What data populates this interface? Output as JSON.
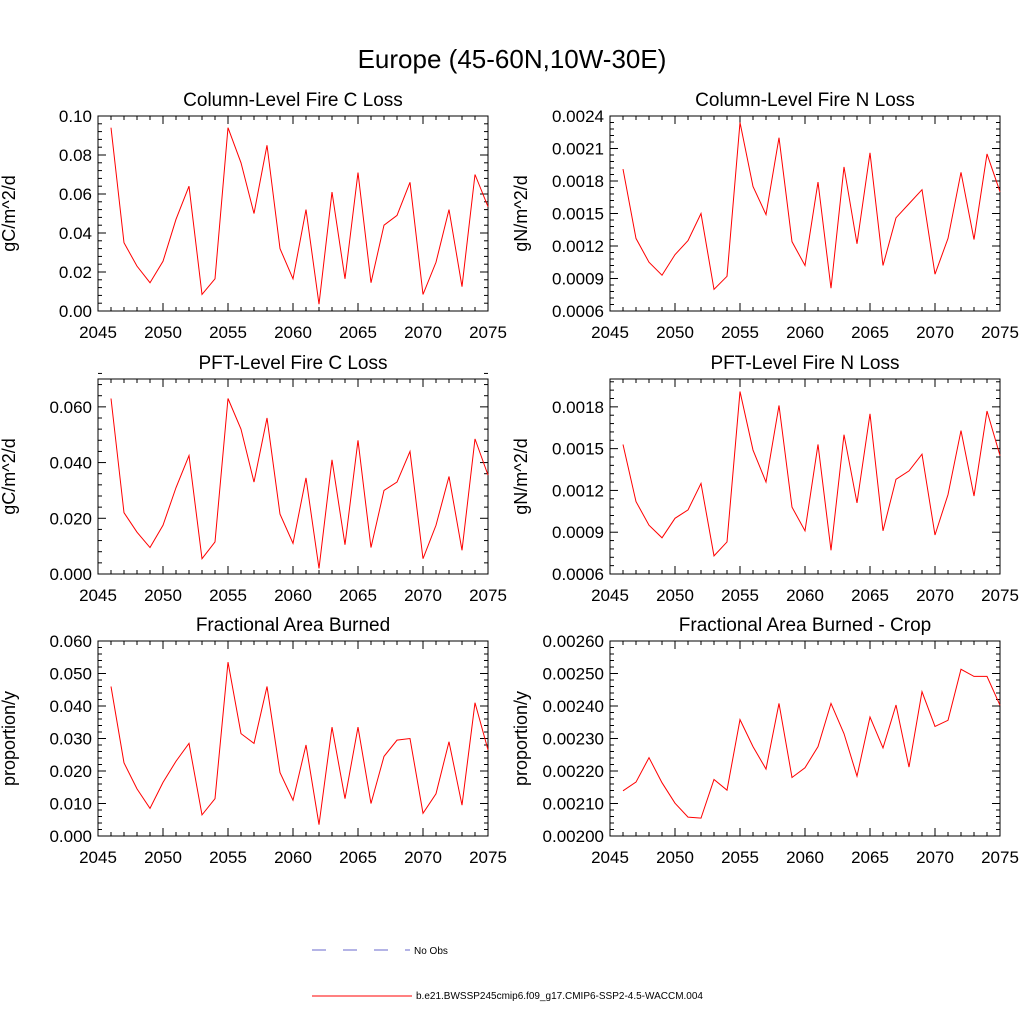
{
  "title": "Europe (45-60N,10W-30E)",
  "colors": {
    "series": "#ff0000",
    "obs": "#6a6acd",
    "axis": "#000000"
  },
  "legend": {
    "obs_label": "No Obs",
    "model_label": "b.e21.BWSSP245cmip6.f09_g17.CMIP6-SSP2-4.5-WACCM.004"
  },
  "chart_data": [
    {
      "type": "line",
      "title": "Column-Level Fire C Loss",
      "ylabel": "gC/m^2/d",
      "xlim": [
        2045,
        2075
      ],
      "ylim": [
        0.0,
        0.1
      ],
      "xticks": [
        "2045",
        "2050",
        "2055",
        "2060",
        "2065",
        "2070",
        "2075"
      ],
      "yticks": [
        "0.00",
        "0.02",
        "0.04",
        "0.06",
        "0.08",
        "0.10"
      ],
      "x": [
        2046,
        2047,
        2048,
        2049,
        2050,
        2051,
        2052,
        2053,
        2054,
        2055,
        2056,
        2057,
        2058,
        2059,
        2060,
        2061,
        2062,
        2063,
        2064,
        2065,
        2066,
        2067,
        2068,
        2069,
        2070,
        2071,
        2072,
        2073,
        2074,
        2075
      ],
      "values": [
        0.094,
        0.035,
        0.023,
        0.0145,
        0.0255,
        0.047,
        0.064,
        0.0085,
        0.0165,
        0.094,
        0.076,
        0.05,
        0.085,
        0.032,
        0.0165,
        0.052,
        0.0035,
        0.061,
        0.0165,
        0.071,
        0.0145,
        0.044,
        0.049,
        0.066,
        0.0085,
        0.025,
        0.052,
        0.0125,
        0.07,
        0.0535
      ]
    },
    {
      "type": "line",
      "title": "Column-Level Fire N Loss",
      "ylabel": "gN/m^2/d",
      "xlim": [
        2045,
        2075
      ],
      "ylim": [
        0.0006,
        0.0024
      ],
      "xticks": [
        "2045",
        "2050",
        "2055",
        "2060",
        "2065",
        "2070",
        "2075"
      ],
      "yticks": [
        "0.0006",
        "0.0009",
        "0.0012",
        "0.0015",
        "0.0018",
        "0.0021",
        "0.0024"
      ],
      "x": [
        2046,
        2047,
        2048,
        2049,
        2050,
        2051,
        2052,
        2053,
        2054,
        2055,
        2056,
        2057,
        2058,
        2059,
        2060,
        2061,
        2062,
        2063,
        2064,
        2065,
        2066,
        2067,
        2068,
        2069,
        2070,
        2071,
        2072,
        2073,
        2074,
        2075
      ],
      "values": [
        0.00191,
        0.00127,
        0.00105,
        0.00093,
        0.00112,
        0.00125,
        0.0015,
        0.0008,
        0.00092,
        0.00234,
        0.00175,
        0.00149,
        0.0022,
        0.00124,
        0.00102,
        0.00179,
        0.00081,
        0.00193,
        0.00122,
        0.00206,
        0.00102,
        0.00146,
        0.00159,
        0.00172,
        0.00094,
        0.00127,
        0.00188,
        0.00126,
        0.00205,
        0.0017
      ]
    },
    {
      "type": "line",
      "title": "PFT-Level Fire C Loss",
      "ylabel": "gC/m^2/d",
      "xlim": [
        2045,
        2075
      ],
      "ylim": [
        0.0,
        0.07
      ],
      "xticks": [
        "2045",
        "2050",
        "2055",
        "2060",
        "2065",
        "2070",
        "2075"
      ],
      "yticks": [
        "0.000",
        "0.020",
        "0.040",
        "0.060"
      ],
      "ytick_values": [
        0.0,
        0.02,
        0.04,
        0.06
      ],
      "x": [
        2046,
        2047,
        2048,
        2049,
        2050,
        2051,
        2052,
        2053,
        2054,
        2055,
        2056,
        2057,
        2058,
        2059,
        2060,
        2061,
        2062,
        2063,
        2064,
        2065,
        2066,
        2067,
        2068,
        2069,
        2070,
        2071,
        2072,
        2073,
        2074,
        2075
      ],
      "values": [
        0.063,
        0.022,
        0.015,
        0.0095,
        0.0175,
        0.031,
        0.0425,
        0.0055,
        0.0115,
        0.063,
        0.052,
        0.033,
        0.056,
        0.0215,
        0.011,
        0.0345,
        0.002,
        0.041,
        0.0105,
        0.048,
        0.0095,
        0.03,
        0.033,
        0.044,
        0.0055,
        0.0175,
        0.035,
        0.0085,
        0.0485,
        0.0355
      ]
    },
    {
      "type": "line",
      "title": "PFT-Level Fire N Loss",
      "ylabel": "gN/m^2/d",
      "xlim": [
        2045,
        2075
      ],
      "ylim": [
        0.0006,
        0.002
      ],
      "xticks": [
        "2045",
        "2050",
        "2055",
        "2060",
        "2065",
        "2070",
        "2075"
      ],
      "yticks": [
        "0.0006",
        "0.0009",
        "0.0012",
        "0.0015",
        "0.0018"
      ],
      "ytick_values": [
        0.0006,
        0.0009,
        0.0012,
        0.0015,
        0.0018
      ],
      "x": [
        2046,
        2047,
        2048,
        2049,
        2050,
        2051,
        2052,
        2053,
        2054,
        2055,
        2056,
        2057,
        2058,
        2059,
        2060,
        2061,
        2062,
        2063,
        2064,
        2065,
        2066,
        2067,
        2068,
        2069,
        2070,
        2071,
        2072,
        2073,
        2074,
        2075
      ],
      "values": [
        0.00153,
        0.00112,
        0.00095,
        0.00086,
        0.001,
        0.00106,
        0.00125,
        0.00073,
        0.00083,
        0.00191,
        0.00149,
        0.00126,
        0.00181,
        0.00108,
        0.00091,
        0.00153,
        0.00077,
        0.0016,
        0.00111,
        0.00175,
        0.00091,
        0.00128,
        0.00134,
        0.00146,
        0.00088,
        0.00117,
        0.00163,
        0.00116,
        0.00177,
        0.00145
      ]
    },
    {
      "type": "line",
      "title": "Fractional Area Burned",
      "ylabel": "proportion/y",
      "xlim": [
        2045,
        2075
      ],
      "ylim": [
        0.0,
        0.06
      ],
      "xticks": [
        "2045",
        "2050",
        "2055",
        "2060",
        "2065",
        "2070",
        "2075"
      ],
      "yticks": [
        "0.000",
        "0.010",
        "0.020",
        "0.030",
        "0.040",
        "0.050",
        "0.060"
      ],
      "x": [
        2046,
        2047,
        2048,
        2049,
        2050,
        2051,
        2052,
        2053,
        2054,
        2055,
        2056,
        2057,
        2058,
        2059,
        2060,
        2061,
        2062,
        2063,
        2064,
        2065,
        2066,
        2067,
        2068,
        2069,
        2070,
        2071,
        2072,
        2073,
        2074,
        2075
      ],
      "values": [
        0.046,
        0.0225,
        0.0145,
        0.0085,
        0.0165,
        0.023,
        0.0285,
        0.0065,
        0.0115,
        0.0535,
        0.0315,
        0.0285,
        0.046,
        0.0195,
        0.011,
        0.028,
        0.0035,
        0.0335,
        0.0115,
        0.0335,
        0.01,
        0.0245,
        0.0295,
        0.03,
        0.007,
        0.013,
        0.029,
        0.0095,
        0.041,
        0.0265
      ]
    },
    {
      "type": "line",
      "title": "Fractional Area Burned - Crop",
      "ylabel": "proportion/y",
      "xlim": [
        2045,
        2075
      ],
      "ylim": [
        0.002,
        0.0026
      ],
      "xticks": [
        "2045",
        "2050",
        "2055",
        "2060",
        "2065",
        "2070",
        "2075"
      ],
      "yticks": [
        "0.00200",
        "0.00210",
        "0.00220",
        "0.00230",
        "0.00240",
        "0.00250",
        "0.00260"
      ],
      "x": [
        2046,
        2047,
        2048,
        2049,
        2050,
        2051,
        2052,
        2053,
        2054,
        2055,
        2056,
        2057,
        2058,
        2059,
        2060,
        2061,
        2062,
        2063,
        2064,
        2065,
        2066,
        2067,
        2068,
        2069,
        2070,
        2071,
        2072,
        2073,
        2074,
        2075
      ],
      "values": [
        0.002139,
        0.002166,
        0.002241,
        0.002164,
        0.002101,
        0.002058,
        0.002055,
        0.002174,
        0.002141,
        0.002358,
        0.002275,
        0.002206,
        0.002408,
        0.00218,
        0.00221,
        0.002275,
        0.002408,
        0.002315,
        0.002184,
        0.002366,
        0.002271,
        0.002403,
        0.002212,
        0.002444,
        0.002337,
        0.002356,
        0.002513,
        0.002491,
        0.002491,
        0.002402
      ]
    }
  ]
}
